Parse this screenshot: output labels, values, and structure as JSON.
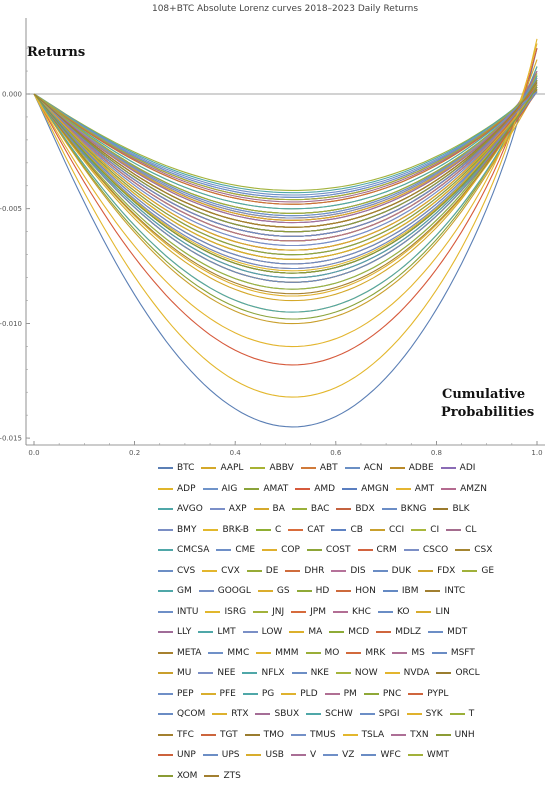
{
  "chart_data": {
    "type": "line",
    "title": "108+BTC Absolute Lorenz curves 2018–2023 Daily Returns",
    "ylabel": "Returns",
    "xlabel": "Cumulative Probabilities",
    "xlim": [
      0,
      1
    ],
    "ylim": [
      -0.015,
      0.0025
    ],
    "x_ticks": [
      "0.0",
      "0.2",
      "0.4",
      "0.6",
      "0.8",
      "1.0"
    ],
    "y_ticks": [
      "0.000",
      "-0.005",
      "-0.010",
      "-0.015"
    ],
    "grid": false,
    "legend_position": "bottom",
    "series_count_note": "",
    "series": [
      {
        "name": "BTC",
        "color": "#5b7fb5",
        "min": -0.0145,
        "end": 0.002
      },
      {
        "name": "AAPL",
        "color": "#d4a82a",
        "min": -0.009,
        "end": 0.0015
      },
      {
        "name": "ABBV",
        "color": "#a7b233",
        "min": -0.0058,
        "end": 0.0005
      },
      {
        "name": "ABT",
        "color": "#d07a3a",
        "min": -0.0055,
        "end": 0.0004
      },
      {
        "name": "ACN",
        "color": "#6a8fc4",
        "min": -0.0062,
        "end": 0.0006
      },
      {
        "name": "ADBE",
        "color": "#b98a2a",
        "min": -0.0078,
        "end": 0.0008
      },
      {
        "name": "ADI",
        "color": "#8a6bb5",
        "min": -0.008,
        "end": 0.0007
      },
      {
        "name": "ADP",
        "color": "#e0b52a",
        "min": -0.006,
        "end": 0.0006
      },
      {
        "name": "AIG",
        "color": "#6f93c9",
        "min": -0.0082,
        "end": 0.0002
      },
      {
        "name": "AMAT",
        "color": "#8aa33a",
        "min": -0.0098,
        "end": 0.0012
      },
      {
        "name": "AMD",
        "color": "#d65a3c",
        "min": -0.0118,
        "end": 0.002
      },
      {
        "name": "AMGN",
        "color": "#5a7ec0",
        "min": -0.0058,
        "end": 0.0004
      },
      {
        "name": "AMT",
        "color": "#e5b530",
        "min": -0.006,
        "end": 0.0003
      },
      {
        "name": "AMZN",
        "color": "#b46a8f",
        "min": -0.008,
        "end": 0.001
      },
      {
        "name": "AVGO",
        "color": "#4fa7a8",
        "min": -0.0085,
        "end": 0.0012
      },
      {
        "name": "AXP",
        "color": "#7b8fc8",
        "min": -0.0074,
        "end": 0.0006
      },
      {
        "name": "BA",
        "color": "#d5a92c",
        "min": -0.0095,
        "end": 0.0002
      },
      {
        "name": "BAC",
        "color": "#9ab03a",
        "min": -0.0072,
        "end": 0.0004
      },
      {
        "name": "BDX",
        "color": "#c4623f",
        "min": -0.0055,
        "end": 0.0002
      },
      {
        "name": "BKNG",
        "color": "#6b8dc6",
        "min": -0.0078,
        "end": 0.0005
      },
      {
        "name": "BLK",
        "color": "#9b7a2c",
        "min": -0.0068,
        "end": 0.0006
      },
      {
        "name": "BMY",
        "color": "#7a8ec4",
        "min": -0.0052,
        "end": 0.0002
      },
      {
        "name": "BRK-B",
        "color": "#e2b82c",
        "min": -0.0048,
        "end": 0.0004
      },
      {
        "name": "C",
        "color": "#8fae33",
        "min": -0.0082,
        "end": 0.0003
      },
      {
        "name": "CAT",
        "color": "#d96c3b",
        "min": -0.007,
        "end": 0.0006
      },
      {
        "name": "CB",
        "color": "#5f82c2",
        "min": -0.0053,
        "end": 0.0004
      },
      {
        "name": "CCI",
        "color": "#c9a02d",
        "min": -0.0058,
        "end": 0.0002
      },
      {
        "name": "CI",
        "color": "#a9b73c",
        "min": -0.0064,
        "end": 0.0004
      },
      {
        "name": "CL",
        "color": "#a46c8e",
        "min": -0.0047,
        "end": 0.0002
      },
      {
        "name": "CMCSA",
        "color": "#4fa7a8",
        "min": -0.006,
        "end": 0.0003
      },
      {
        "name": "CME",
        "color": "#6e8fc7",
        "min": -0.0052,
        "end": 0.0003
      },
      {
        "name": "COP",
        "color": "#dfb02e",
        "min": -0.0088,
        "end": 0.0004
      },
      {
        "name": "COST",
        "color": "#8da538",
        "min": -0.005,
        "end": 0.0006
      },
      {
        "name": "CRM",
        "color": "#d2633f",
        "min": -0.0076,
        "end": 0.0005
      },
      {
        "name": "CSCO",
        "color": "#7c8fc6",
        "min": -0.006,
        "end": 0.0002
      },
      {
        "name": "CSX",
        "color": "#a48531",
        "min": -0.0062,
        "end": 0.0005
      },
      {
        "name": "CVS",
        "color": "#6c8ec5",
        "min": -0.0062,
        "end": 0.0002
      },
      {
        "name": "CVX",
        "color": "#e3b62e",
        "min": -0.0074,
        "end": 0.0003
      },
      {
        "name": "DE",
        "color": "#96ab36",
        "min": -0.0072,
        "end": 0.0007
      },
      {
        "name": "DHR",
        "color": "#cf6c3c",
        "min": -0.006,
        "end": 0.0006
      },
      {
        "name": "DIS",
        "color": "#b5729a",
        "min": -0.0064,
        "end": 0.0002
      },
      {
        "name": "DUK",
        "color": "#6a8cc4",
        "min": -0.0046,
        "end": 0.0002
      },
      {
        "name": "FDX",
        "color": "#cfa42c",
        "min": -0.0072,
        "end": 0.0002
      },
      {
        "name": "GE",
        "color": "#a0b13a",
        "min": -0.0085,
        "end": 0.0006
      },
      {
        "name": "GM",
        "color": "#4fa7a8",
        "min": -0.008,
        "end": 0.0003
      },
      {
        "name": "GOOGL",
        "color": "#7590c6",
        "min": -0.0066,
        "end": 0.0005
      },
      {
        "name": "GS",
        "color": "#dbad2d",
        "min": -0.0072,
        "end": 0.0003
      },
      {
        "name": "HD",
        "color": "#8fa937",
        "min": -0.0058,
        "end": 0.0004
      },
      {
        "name": "HON",
        "color": "#cd6a3c",
        "min": -0.0054,
        "end": 0.0003
      },
      {
        "name": "IBM",
        "color": "#6489c3",
        "min": -0.0056,
        "end": 0.0001
      },
      {
        "name": "INTC",
        "color": "#a17f30",
        "min": -0.0078,
        "end": 0.0001
      },
      {
        "name": "INTU",
        "color": "#6e8fc7",
        "min": -0.0076,
        "end": 0.0008
      },
      {
        "name": "ISRG",
        "color": "#e1b72d",
        "min": -0.0077,
        "end": 0.0007
      },
      {
        "name": "JNJ",
        "color": "#a2b23b",
        "min": -0.0042,
        "end": 0.0002
      },
      {
        "name": "JPM",
        "color": "#d66b3c",
        "min": -0.0064,
        "end": 0.0004
      },
      {
        "name": "KHC",
        "color": "#b26e94",
        "min": -0.0062,
        "end": 0.0001
      },
      {
        "name": "KO",
        "color": "#6a8dc5",
        "min": -0.0045,
        "end": 0.0002
      },
      {
        "name": "LIN",
        "color": "#d7ab2d",
        "min": -0.0055,
        "end": 0.0006
      },
      {
        "name": "LLY",
        "color": "#a06c98",
        "min": -0.0062,
        "end": 0.001
      },
      {
        "name": "LMT",
        "color": "#4fa7a8",
        "min": -0.005,
        "end": 0.0004
      },
      {
        "name": "LOW",
        "color": "#7a8fc6",
        "min": -0.0066,
        "end": 0.0005
      },
      {
        "name": "MA",
        "color": "#dcb02c",
        "min": -0.0064,
        "end": 0.0006
      },
      {
        "name": "MCD",
        "color": "#8eab37",
        "min": -0.0048,
        "end": 0.0004
      },
      {
        "name": "MDLZ",
        "color": "#cf663d",
        "min": -0.0046,
        "end": 0.0003
      },
      {
        "name": "MDT",
        "color": "#6c8ec6",
        "min": -0.0052,
        "end": 0.0001
      },
      {
        "name": "META",
        "color": "#a7812f",
        "min": -0.0087,
        "end": 0.0006
      },
      {
        "name": "MMC",
        "color": "#7091c8",
        "min": -0.0053,
        "end": 0.0006
      },
      {
        "name": "MMM",
        "color": "#e0b42d",
        "min": -0.0054,
        "end": 0.0001
      },
      {
        "name": "MO",
        "color": "#9aae38",
        "min": -0.0058,
        "end": 0.0002
      },
      {
        "name": "MRK",
        "color": "#d26a3c",
        "min": -0.0048,
        "end": 0.0004
      },
      {
        "name": "MS",
        "color": "#ad6f95",
        "min": -0.0074,
        "end": 0.0005
      },
      {
        "name": "MSFT",
        "color": "#6a8cc4",
        "min": -0.0062,
        "end": 0.0008
      },
      {
        "name": "MU",
        "color": "#c99f2c",
        "min": -0.01,
        "end": 0.0008
      },
      {
        "name": "NEE",
        "color": "#7b8fc6",
        "min": -0.0054,
        "end": 0.0005
      },
      {
        "name": "NFLX",
        "color": "#4fa7a8",
        "min": -0.0095,
        "end": 0.0008
      },
      {
        "name": "NKE",
        "color": "#6c8ec5",
        "min": -0.007,
        "end": 0.0004
      },
      {
        "name": "NOW",
        "color": "#a5b43b",
        "min": -0.0082,
        "end": 0.0009
      },
      {
        "name": "NVDA",
        "color": "#e3b52e",
        "min": -0.011,
        "end": 0.0022
      },
      {
        "name": "ORCL",
        "color": "#9a7d2f",
        "min": -0.0064,
        "end": 0.0006
      },
      {
        "name": "PEP",
        "color": "#6f8fc7",
        "min": -0.0045,
        "end": 0.0003
      },
      {
        "name": "PFE",
        "color": "#d9ae2d",
        "min": -0.0052,
        "end": 0.0001
      },
      {
        "name": "PG",
        "color": "#4fa7a8",
        "min": -0.0043,
        "end": 0.0003
      },
      {
        "name": "PLD",
        "color": "#dfb22e",
        "min": -0.0064,
        "end": 0.0006
      },
      {
        "name": "PM",
        "color": "#b06f93",
        "min": -0.0058,
        "end": 0.0002
      },
      {
        "name": "PNC",
        "color": "#8fa837",
        "min": -0.007,
        "end": 0.0002
      },
      {
        "name": "PYPL",
        "color": "#cf653d",
        "min": -0.0082,
        "end": 0.0001
      },
      {
        "name": "QCOM",
        "color": "#6a8cc4",
        "min": -0.0082,
        "end": 0.0006
      },
      {
        "name": "RTX",
        "color": "#ddb12d",
        "min": -0.0064,
        "end": 0.0002
      },
      {
        "name": "SBUX",
        "color": "#a56d96",
        "min": -0.006,
        "end": 0.0003
      },
      {
        "name": "SCHW",
        "color": "#4fa7a8",
        "min": -0.0078,
        "end": 0.0003
      },
      {
        "name": "SPGI",
        "color": "#6c8ec6",
        "min": -0.006,
        "end": 0.0007
      },
      {
        "name": "SYK",
        "color": "#e0b22d",
        "min": -0.0058,
        "end": 0.0004
      },
      {
        "name": "T",
        "color": "#9bb039",
        "min": -0.0052,
        "end": 0.0001
      },
      {
        "name": "TFC",
        "color": "#a3802f",
        "min": -0.0078,
        "end": 0.0002
      },
      {
        "name": "TGT",
        "color": "#cc653d",
        "min": -0.0068,
        "end": 0.0004
      },
      {
        "name": "TMO",
        "color": "#9a7c2f",
        "min": -0.0058,
        "end": 0.0005
      },
      {
        "name": "TMUS",
        "color": "#7390c7",
        "min": -0.0056,
        "end": 0.0005
      },
      {
        "name": "TSLA",
        "color": "#e3b72d",
        "min": -0.0132,
        "end": 0.0024
      },
      {
        "name": "TXN",
        "color": "#ad6f96",
        "min": -0.0064,
        "end": 0.0004
      },
      {
        "name": "UNH",
        "color": "#8c9c35",
        "min": -0.006,
        "end": 0.0006
      },
      {
        "name": "UNP",
        "color": "#cc623c",
        "min": -0.0062,
        "end": 0.0004
      },
      {
        "name": "UPS",
        "color": "#6c8ec5",
        "min": -0.0062,
        "end": 0.0003
      },
      {
        "name": "USB",
        "color": "#d8ad2d",
        "min": -0.0068,
        "end": 0.0001
      },
      {
        "name": "V",
        "color": "#a96e95",
        "min": -0.0056,
        "end": 0.0005
      },
      {
        "name": "VZ",
        "color": "#6f8fc7",
        "min": -0.0044,
        "end": 0.0001
      },
      {
        "name": "WFC",
        "color": "#6a8cc4",
        "min": -0.0074,
        "end": 0.0001
      },
      {
        "name": "WMT",
        "color": "#a2b13a",
        "min": -0.0046,
        "end": 0.0004
      },
      {
        "name": "XOM",
        "color": "#8a9b34",
        "min": -0.0078,
        "end": 0.0003
      },
      {
        "name": "ZTS",
        "color": "#a27f30",
        "min": -0.0058,
        "end": 0.0005
      }
    ],
    "reference_line": {
      "y": 0.0,
      "color": "#888888"
    }
  },
  "legend": {
    "rows": [
      [
        "BTC",
        "AAPL",
        "ABBV",
        "ABT",
        "ACN",
        "ADBE",
        "ADI"
      ],
      [
        "ADP",
        "AIG",
        "AMAT",
        "AMD",
        "AMGN",
        "AMT",
        "AMZN"
      ],
      [
        "AVGO",
        "AXP",
        "BA",
        "BAC",
        "BDX",
        "BKNG",
        "BLK"
      ],
      [
        "BMY",
        "BRK-B",
        "C",
        "CAT",
        "CB",
        "CCI",
        "CI",
        "CL"
      ],
      [
        "CMCSA",
        "CME",
        "COP",
        "COST",
        "CRM",
        "CSCO",
        "CSX"
      ],
      [
        "CVS",
        "CVX",
        "DE",
        "DHR",
        "DIS",
        "DUK",
        "FDX",
        "GE"
      ],
      [
        "GM",
        "GOOGL",
        "GS",
        "HD",
        "HON",
        "IBM",
        "INTC"
      ],
      [
        "INTU",
        "ISRG",
        "JNJ",
        "JPM",
        "KHC",
        "KO",
        "LIN"
      ],
      [
        "LLY",
        "LMT",
        "LOW",
        "MA",
        "MCD",
        "MDLZ",
        "MDT"
      ],
      [
        "META",
        "MMC",
        "MMM",
        "MO",
        "MRK",
        "MS",
        "MSFT"
      ],
      [
        "MU",
        "NEE",
        "NFLX",
        "NKE",
        "NOW",
        "NVDA",
        "ORCL"
      ],
      [
        "PEP",
        "PFE",
        "PG",
        "PLD",
        "PM",
        "PNC",
        "PYPL"
      ],
      [
        "QCOM",
        "RTX",
        "SBUX",
        "SCHW",
        "SPGI",
        "SYK",
        "T"
      ],
      [
        "TFC",
        "TGT",
        "TMO",
        "TMUS",
        "TSLA",
        "TXN",
        "UNH"
      ],
      [
        "UNP",
        "UPS",
        "USB",
        "V",
        "VZ",
        "WFC",
        "WMT"
      ],
      [
        "XOM",
        "ZTS"
      ]
    ]
  }
}
